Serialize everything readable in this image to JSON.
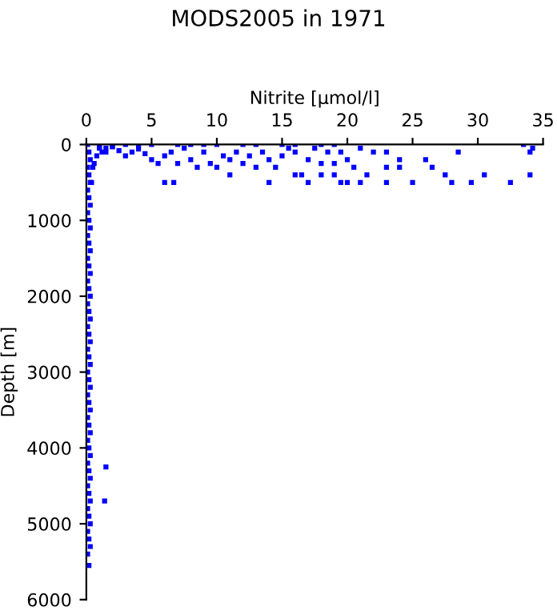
{
  "chart_data": {
    "type": "scatter",
    "title": "MODS2005 in 1971",
    "xlabel": "Nitrite [µmol/l]",
    "ylabel": "Depth [m]",
    "xlim": [
      0,
      35
    ],
    "xticks": [
      0,
      5,
      10,
      15,
      20,
      25,
      30,
      35
    ],
    "ylim": [
      6000,
      0
    ],
    "yticks": [
      0,
      1000,
      2000,
      3000,
      4000,
      5000,
      6000
    ],
    "grid": false,
    "marker": "square",
    "tick_labels": "xy",
    "series": [
      {
        "color": "#0000ff",
        "x": [
          0.1,
          0.2,
          0.3,
          0.1,
          0.2,
          0.3,
          0.1,
          0.2,
          0.3,
          0.1,
          0.2,
          0.3,
          0.1,
          0.2,
          0.3,
          0.1,
          0.2,
          0.3,
          0.1,
          0.2,
          0.3,
          0.1,
          0.2,
          0.3,
          0.1,
          0.2,
          0.3,
          0.1,
          0.2,
          0.3,
          0.1,
          0.2,
          0.3,
          0.1,
          0.2,
          0.3,
          0.1,
          0.2,
          0.3,
          0.1,
          0.2,
          0.3,
          0.1,
          0.2,
          0.3,
          0.1,
          0.2,
          0.3,
          0.1,
          0.2,
          0.3,
          0.1,
          0.2,
          0.3,
          0.1,
          0.2,
          0.5,
          0.8,
          1.2,
          0.4,
          0.6,
          1.0,
          1.5,
          2.0,
          1.4,
          1,
          1.5,
          2,
          2.5,
          3,
          3.5,
          4,
          4.5,
          5,
          5.5,
          6,
          6,
          6.5,
          6.7,
          7,
          7.5,
          8,
          8.5,
          9,
          9.5,
          10,
          10.5,
          11,
          11,
          11.5,
          12,
          12.5,
          13,
          13.5,
          14,
          14,
          14.5,
          15,
          15.5,
          16,
          16,
          16.5,
          17,
          17,
          17.5,
          18,
          18,
          18.5,
          19,
          19,
          19.5,
          19.5,
          20,
          20,
          20.5,
          21,
          21,
          21.5,
          22,
          23,
          23,
          23,
          24,
          24,
          25,
          26,
          26.5,
          27.5,
          28,
          28.5,
          29.5,
          30.5,
          32.5,
          33.5,
          34,
          34,
          34.2,
          3,
          4,
          5,
          7,
          8,
          9,
          10,
          12,
          13,
          15,
          16,
          18,
          19
        ],
        "values": [
          0,
          100,
          200,
          300,
          400,
          500,
          600,
          700,
          800,
          900,
          1000,
          1100,
          1200,
          1300,
          1400,
          1500,
          1600,
          1700,
          1800,
          1900,
          2000,
          2100,
          2200,
          2300,
          2400,
          2500,
          2600,
          2700,
          2800,
          2900,
          3000,
          3100,
          3200,
          3300,
          3400,
          3500,
          3600,
          3700,
          3800,
          3900,
          4000,
          4100,
          4200,
          4300,
          4400,
          4500,
          4600,
          4700,
          4800,
          4900,
          5000,
          5100,
          5200,
          5300,
          5400,
          5550,
          300,
          150,
          100,
          500,
          250,
          30,
          50,
          20,
          4700,
          50,
          100,
          30,
          80,
          150,
          100,
          60,
          120,
          200,
          250,
          150,
          500,
          100,
          500,
          250,
          50,
          200,
          300,
          100,
          250,
          300,
          150,
          200,
          400,
          100,
          250,
          150,
          300,
          100,
          200,
          500,
          300,
          150,
          50,
          100,
          400,
          400,
          200,
          500,
          50,
          250,
          400,
          100,
          250,
          400,
          100,
          500,
          200,
          500,
          300,
          50,
          500,
          400,
          100,
          100,
          300,
          500,
          200,
          300,
          500,
          200,
          300,
          400,
          500,
          100,
          500,
          400,
          500,
          0,
          100,
          400,
          50,
          0,
          0,
          0,
          0,
          0,
          0,
          0,
          0,
          0,
          0,
          0,
          0,
          0
        ]
      },
      {
        "color": "#0000ff",
        "x": [
          1.5
        ],
        "values": [
          4250
        ]
      }
    ]
  }
}
